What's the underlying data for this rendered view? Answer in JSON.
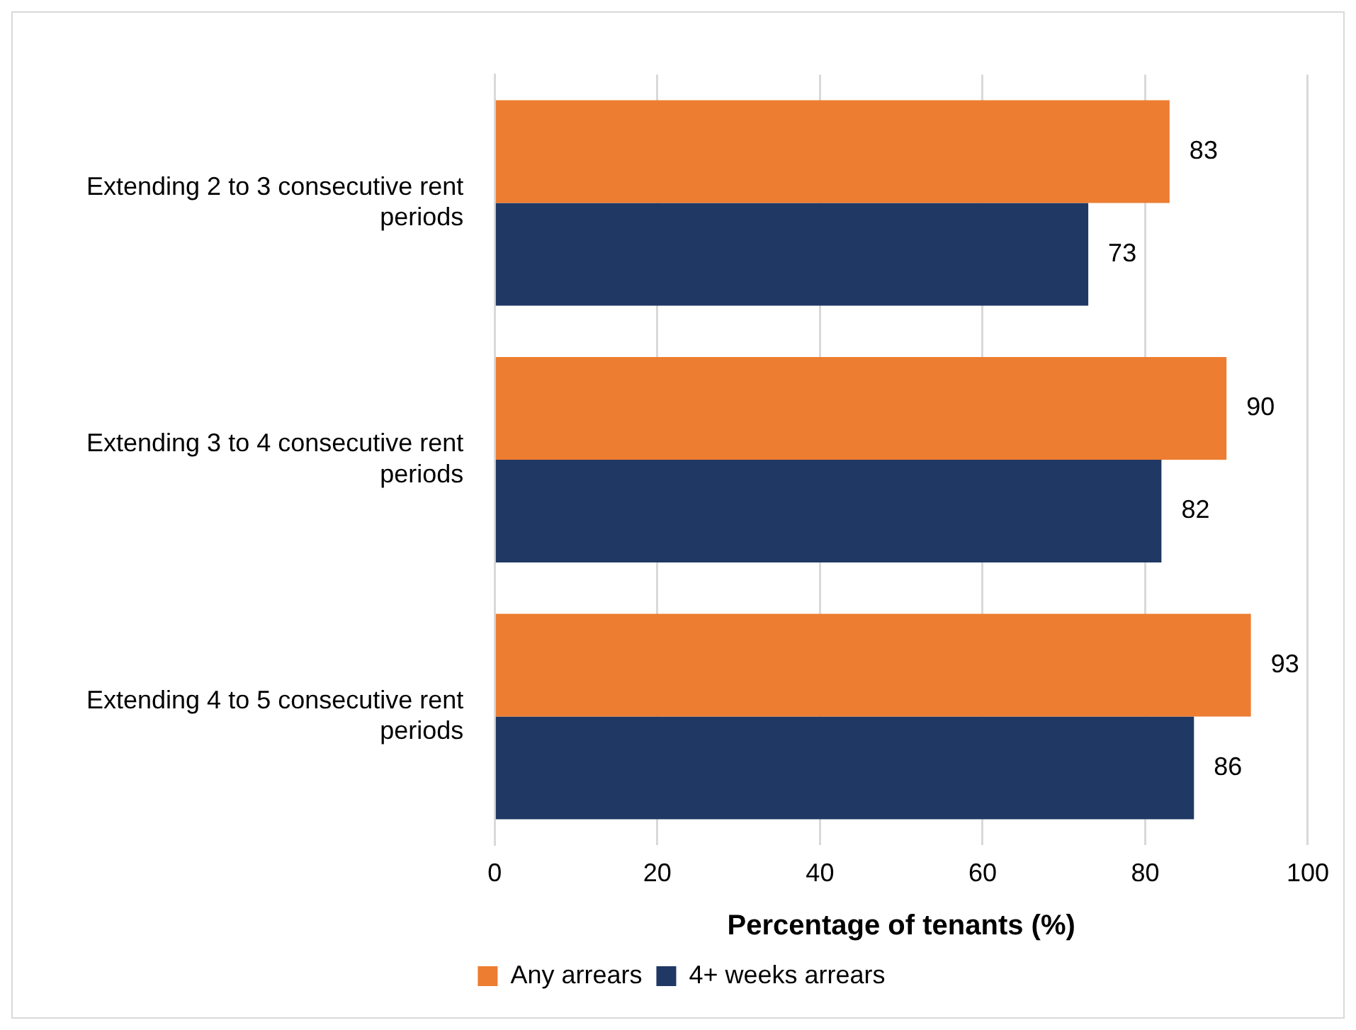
{
  "chart_data": {
    "type": "bar",
    "orientation": "horizontal",
    "xlabel": "Percentage of tenants (%)",
    "categories": [
      "Extending 2 to 3 consecutive rent periods",
      "Extending 3 to 4 consecutive rent periods",
      "Extending 4 to 5 consecutive rent periods"
    ],
    "series": [
      {
        "name": "Any arrears",
        "color": "#ed7d31",
        "values": [
          83,
          90,
          93
        ]
      },
      {
        "name": "4+ weeks arrears",
        "color": "#203864",
        "values": [
          73,
          82,
          86
        ]
      }
    ],
    "xlim": [
      0,
      100
    ],
    "xticks": [
      0,
      20,
      40,
      60,
      80,
      100
    ],
    "grid": "x",
    "legend": "bottom",
    "data_labels": true
  }
}
